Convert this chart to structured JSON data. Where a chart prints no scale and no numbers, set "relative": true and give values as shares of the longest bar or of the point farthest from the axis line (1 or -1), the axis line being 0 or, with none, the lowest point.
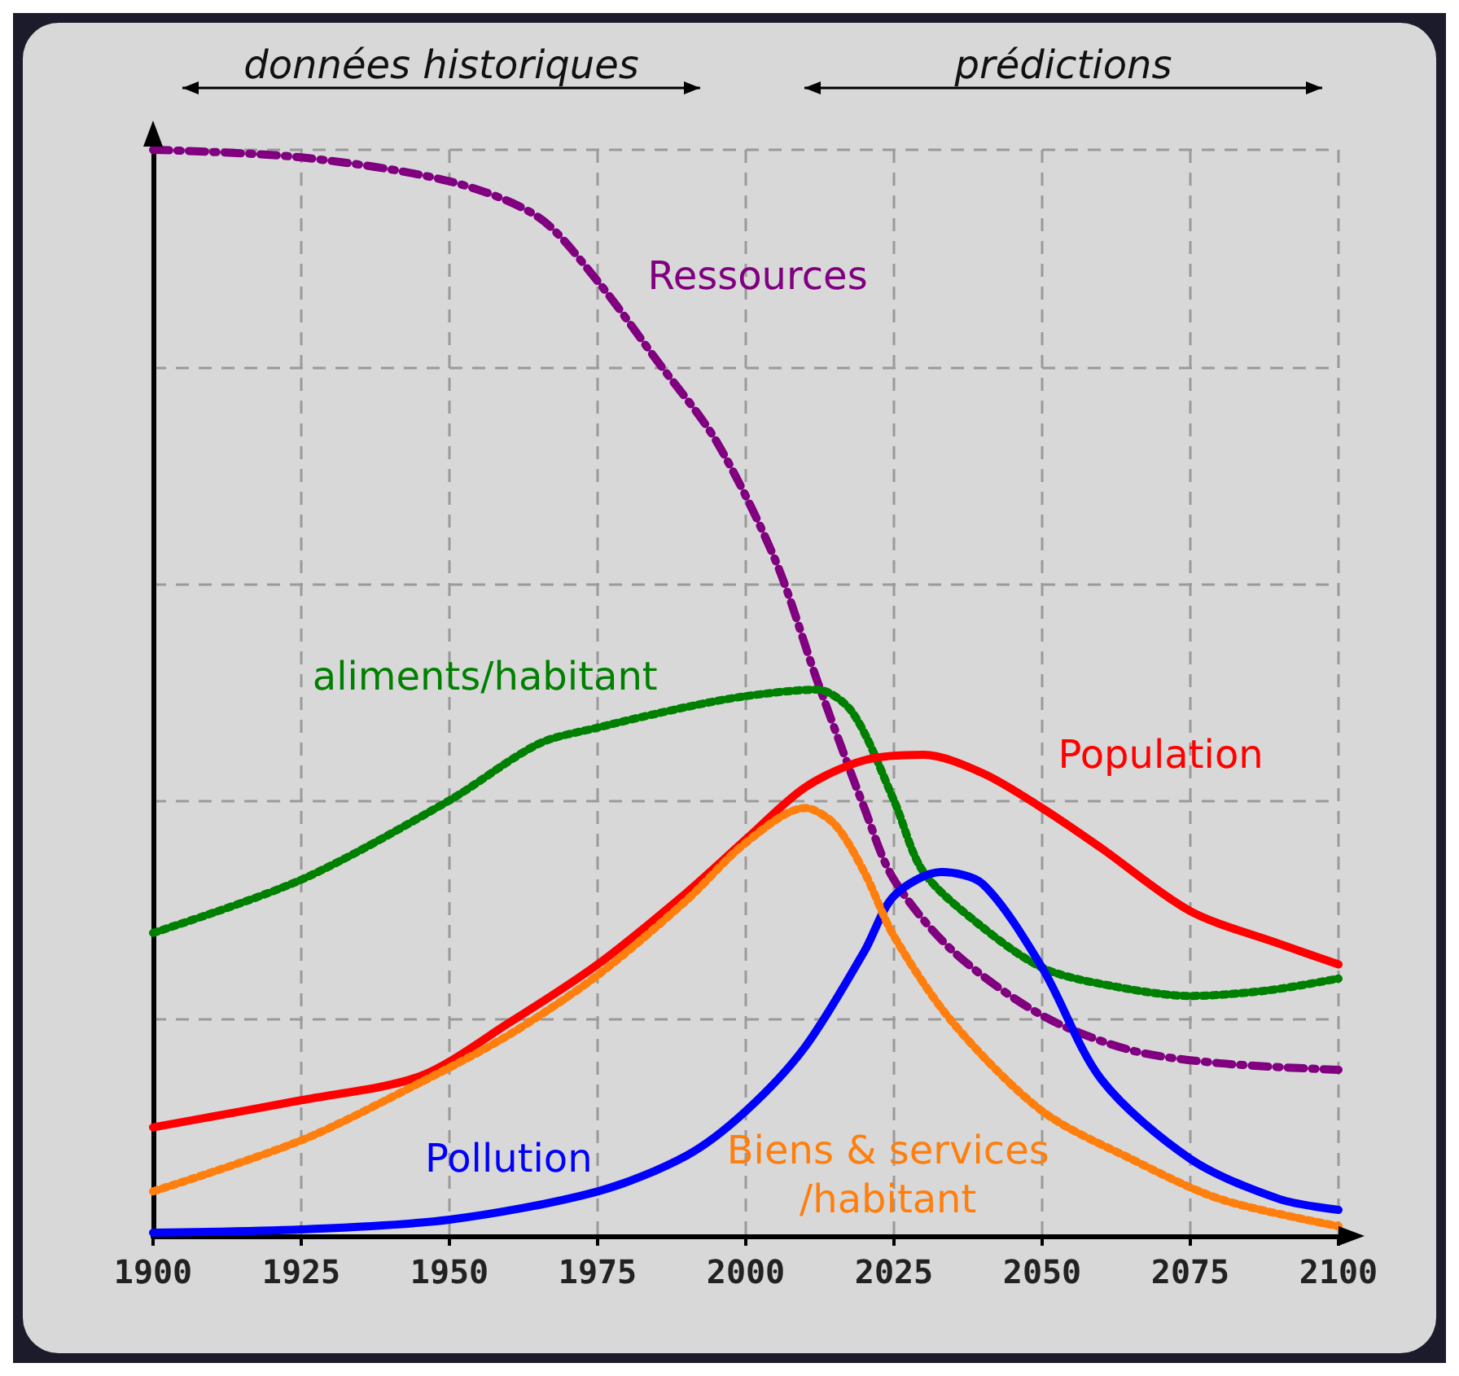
{
  "chart_data": {
    "type": "line",
    "relative": true,
    "xlim": [
      1900,
      2100
    ],
    "xticks": [
      1900,
      1925,
      1950,
      1975,
      2000,
      2025,
      2050,
      2075,
      2100
    ],
    "grid": true,
    "legend": false,
    "marker": "none",
    "series": [
      {
        "name": "Ressources",
        "color": "#800080",
        "line_style": "dashed",
        "x": [
          1900,
          1925,
          1950,
          1965,
          1975,
          1985,
          1995,
          2005,
          2012,
          2020,
          2025,
          2035,
          2050,
          2065,
          2080,
          2100
        ],
        "values": [
          1.0,
          0.993,
          0.971,
          0.938,
          0.879,
          0.806,
          0.732,
          0.622,
          0.512,
          0.394,
          0.328,
          0.262,
          0.203,
          0.171,
          0.159,
          0.153
        ]
      },
      {
        "name": "aliments/habitant",
        "color": "#008000",
        "line_style": "dotted",
        "x": [
          1900,
          1925,
          1950,
          1965,
          1975,
          1990,
          2000,
          2012,
          2018,
          2025,
          2030,
          2040,
          2050,
          2060,
          2075,
          2088,
          2100
        ],
        "values": [
          0.279,
          0.328,
          0.401,
          0.453,
          0.468,
          0.487,
          0.497,
          0.503,
          0.482,
          0.401,
          0.335,
          0.284,
          0.247,
          0.232,
          0.221,
          0.226,
          0.237
        ]
      },
      {
        "name": "Population",
        "color": "#ff0000",
        "line_style": "solid",
        "x": [
          1900,
          1925,
          1945,
          1960,
          1975,
          1990,
          2000,
          2010,
          2020,
          2030,
          2040,
          2050,
          2060,
          2075,
          2090,
          2100
        ],
        "values": [
          0.1,
          0.125,
          0.147,
          0.196,
          0.25,
          0.316,
          0.365,
          0.413,
          0.438,
          0.443,
          0.426,
          0.394,
          0.357,
          0.299,
          0.269,
          0.25
        ]
      },
      {
        "name": "Pollution",
        "color": "#0000ff",
        "line_style": "solid",
        "x": [
          1900,
          1925,
          1950,
          1975,
          1990,
          2000,
          2010,
          2020,
          2025,
          2033,
          2040,
          2050,
          2060,
          2075,
          2090,
          2100
        ],
        "values": [
          0.003,
          0.006,
          0.015,
          0.041,
          0.074,
          0.115,
          0.174,
          0.262,
          0.313,
          0.335,
          0.324,
          0.247,
          0.144,
          0.071,
          0.034,
          0.024
        ]
      },
      {
        "name": "Biens & services\n/habitant",
        "color": "#ff7f0e",
        "line_style": "dotted",
        "x": [
          1900,
          1925,
          1945,
          1960,
          1975,
          1990,
          2000,
          2010,
          2015,
          2020,
          2025,
          2035,
          2050,
          2065,
          2080,
          2100
        ],
        "values": [
          0.041,
          0.088,
          0.141,
          0.185,
          0.24,
          0.309,
          0.362,
          0.394,
          0.379,
          0.335,
          0.276,
          0.196,
          0.115,
          0.071,
          0.034,
          0.009
        ]
      }
    ],
    "annotations": [
      "données historiques",
      "prédictions"
    ]
  }
}
